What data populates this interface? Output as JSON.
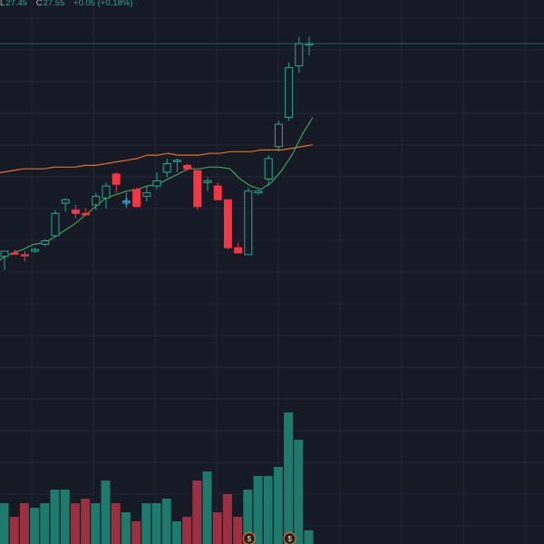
{
  "legend": {
    "low_label": "L",
    "low_value": "27.45",
    "close_label": "C",
    "close_value": "27.55",
    "change": "+0.05 (+0.18%)"
  },
  "colors": {
    "background": "#161a25",
    "grid": "#232733",
    "up": "#22ab94",
    "down": "#f23645",
    "volume_up": "#1e7a6c",
    "volume_down": "#9b3140",
    "ma_fast": "#3fa25a",
    "ma_slow": "#e0702a",
    "last_price_line": "#1f5c55",
    "dividend_badge": "#e0702a",
    "marker": "#2f8fe0"
  },
  "chart_data": {
    "type": "candlestick",
    "candles": [
      {
        "o": 15,
        "h": 18,
        "l": 7,
        "c": 18,
        "up": true
      },
      {
        "o": 17,
        "h": 19,
        "l": 16,
        "c": 17,
        "up": false
      },
      {
        "o": 16,
        "h": 18,
        "l": 12,
        "c": 16,
        "up": false
      },
      {
        "o": 18,
        "h": 20,
        "l": 17,
        "c": 19,
        "up": true
      },
      {
        "o": 22,
        "h": 25,
        "l": 21,
        "c": 24,
        "up": true
      },
      {
        "o": 27,
        "h": 42,
        "l": 27,
        "c": 40,
        "up": true
      },
      {
        "o": 46,
        "h": 49,
        "l": 41,
        "c": 48,
        "up": true
      },
      {
        "o": 42,
        "h": 45,
        "l": 37,
        "c": 40,
        "up": false
      },
      {
        "o": 40,
        "h": 43,
        "l": 39,
        "c": 40,
        "up": false
      },
      {
        "o": 45,
        "h": 52,
        "l": 42,
        "c": 50,
        "up": true
      },
      {
        "o": 49,
        "h": 58,
        "l": 43,
        "c": 56,
        "up": true
      },
      {
        "o": 63,
        "h": 64,
        "l": 52,
        "c": 57,
        "up": false
      },
      {
        "o": 47,
        "h": 52,
        "l": 43,
        "c": 46,
        "up": true
      },
      {
        "o": 54,
        "h": 55,
        "l": 44,
        "c": 44,
        "up": false
      },
      {
        "o": 50,
        "h": 56,
        "l": 47,
        "c": 52,
        "up": true
      },
      {
        "o": 56,
        "h": 64,
        "l": 54,
        "c": 59,
        "up": true
      },
      {
        "o": 64,
        "h": 72,
        "l": 61,
        "c": 69,
        "up": true
      },
      {
        "o": 71,
        "h": 72,
        "l": 64,
        "c": 71,
        "up": true
      },
      {
        "o": 68,
        "h": 69,
        "l": 65,
        "c": 66,
        "up": false
      },
      {
        "o": 65,
        "h": 65,
        "l": 42,
        "c": 44,
        "up": false
      },
      {
        "o": 58,
        "h": 61,
        "l": 53,
        "c": 59,
        "up": true
      },
      {
        "o": 56,
        "h": 58,
        "l": 48,
        "c": 48,
        "up": false
      },
      {
        "o": 48,
        "h": 48,
        "l": 19,
        "c": 20,
        "up": false
      },
      {
        "o": 20,
        "h": 23,
        "l": 17,
        "c": 17,
        "up": false
      },
      {
        "o": 16,
        "h": 55,
        "l": 16,
        "c": 53,
        "up": true
      },
      {
        "o": 52,
        "h": 54,
        "l": 51,
        "c": 53,
        "up": true
      },
      {
        "o": 60,
        "h": 74,
        "l": 56,
        "c": 72,
        "up": true
      },
      {
        "o": 79,
        "h": 94,
        "l": 76,
        "c": 92,
        "up": true
      },
      {
        "o": 96,
        "h": 128,
        "l": 94,
        "c": 125,
        "up": true
      },
      {
        "o": 126,
        "h": 143,
        "l": 122,
        "c": 139,
        "up": true
      },
      {
        "o": 139,
        "h": 143,
        "l": 132,
        "c": 139,
        "up": true
      }
    ],
    "volumes": [
      9,
      6,
      9,
      8,
      9,
      12,
      12,
      9,
      10,
      9,
      14,
      9,
      7,
      5,
      9,
      9,
      10,
      5,
      6,
      14,
      16,
      7,
      11,
      6,
      12,
      15,
      15,
      17,
      29,
      23,
      3
    ],
    "ma_fast": [
      5,
      9,
      14,
      17,
      19,
      22,
      23,
      26,
      30,
      34,
      39,
      44,
      49,
      51,
      53,
      54,
      56,
      57,
      60,
      63,
      66,
      66,
      67,
      67,
      66,
      60,
      56,
      54,
      58,
      65,
      74,
      86,
      96
    ],
    "ma_slow": [
      62,
      63,
      64,
      65,
      66,
      66,
      66,
      67,
      67,
      67,
      68,
      68,
      69,
      70,
      71,
      72,
      74,
      74,
      75,
      74,
      74,
      74,
      75,
      75,
      76,
      76,
      76,
      77,
      77,
      77,
      78,
      79,
      80
    ],
    "price_range": [
      -10,
      175
    ],
    "volume_range": [
      0,
      30
    ],
    "last_price": 139
  },
  "dividend_markers": [
    {
      "candle": 24,
      "label": "$"
    },
    {
      "candle": 28,
      "label": "$"
    }
  ]
}
